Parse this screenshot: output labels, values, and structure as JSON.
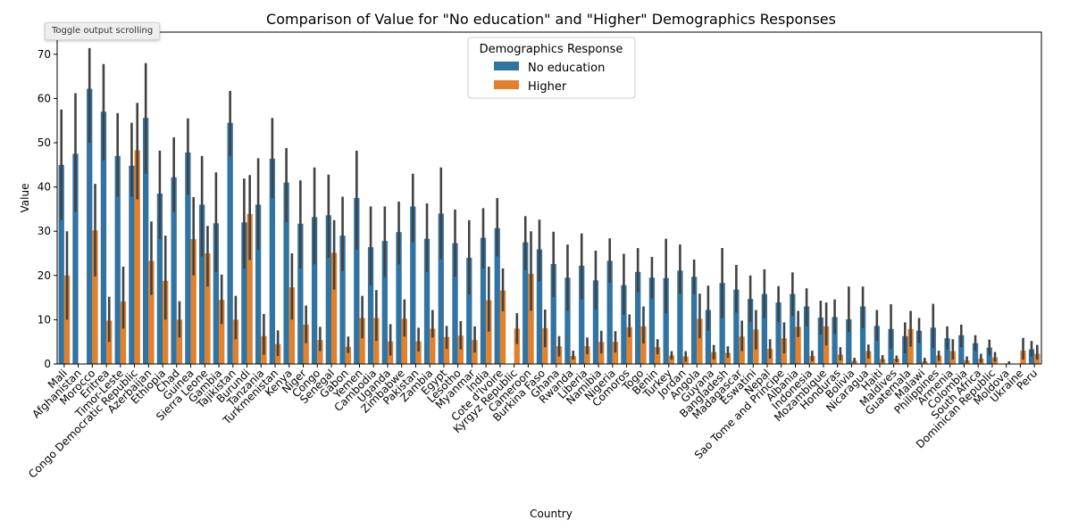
{
  "toolbar": {
    "toggle_label": "Toggle output scrolling"
  },
  "chart_data": {
    "type": "bar",
    "title": "Comparison of Value for \"No education\" and \"Higher\" Demographics Responses",
    "xlabel": "Country",
    "ylabel": "Value",
    "ylim": [
      0,
      75
    ],
    "yticks": [
      0,
      10,
      20,
      30,
      40,
      50,
      60,
      70
    ],
    "grid": false,
    "legend": {
      "title": "Demographics Response",
      "placement": "top-center"
    },
    "colors": {
      "No education": "#3274a1",
      "Higher": "#e1812c",
      "errorbar": "#424242"
    },
    "categories": [
      "Mali",
      "Afghanistan",
      "Morocco",
      "Eritrea",
      "Timor-Leste",
      "Congo Democratic Republic",
      "Azerbaijan",
      "Ethiopia",
      "Chad",
      "Guinea",
      "Sierra Leone",
      "Gambia",
      "Tajikistan",
      "Burundi",
      "Tanzania",
      "Turkmenistan",
      "Kenya",
      "Niger",
      "Congo",
      "Senegal",
      "Gabon",
      "Yemen",
      "Cambodia",
      "Uganda",
      "Zimbabwe",
      "Pakistan",
      "Zambia",
      "Egypt",
      "Lesotho",
      "Myanmar",
      "India",
      "Cote d'Ivoire",
      "Kyrgyz Republic",
      "Cameroon",
      "Burkina Faso",
      "Ghana",
      "Rwanda",
      "Liberia",
      "Namibia",
      "Nigeria",
      "Comoros",
      "Togo",
      "Benin",
      "Turkey",
      "Jordan",
      "Angola",
      "Guyana",
      "Bangladesh",
      "Madagascar",
      "Eswatini",
      "Nepal",
      "Sao Tome and Principe",
      "Albania",
      "Indonesia",
      "Mozambique",
      "Honduras",
      "Bolivia",
      "Nicaragua",
      "Haiti",
      "Maldives",
      "Guatemala",
      "Malawi",
      "Philippines",
      "Armenia",
      "Colombia",
      "South Africa",
      "Dominican Republic",
      "Moldova",
      "Ukraine",
      "Peru"
    ],
    "series": [
      {
        "name": "No education",
        "values": [
          45,
          47.5,
          62.2,
          57,
          47,
          44.8,
          55.6,
          38.5,
          42.2,
          47.8,
          36,
          31.8,
          54.5,
          32,
          36,
          46.4,
          41,
          31.7,
          33.2,
          33.6,
          29,
          37.5,
          26.4,
          27.8,
          29.8,
          35.6,
          28.3,
          34,
          27.3,
          24,
          28.5,
          30.7,
          0,
          27.5,
          25.9,
          22.6,
          19.5,
          22.2,
          18.9,
          23.3,
          17.8,
          20.8,
          19.5,
          19.4,
          21.1,
          19.7,
          12.2,
          18.3,
          16.8,
          14.7,
          15.8,
          13.9,
          15.8,
          13,
          10.5,
          10.6,
          10.1,
          13,
          8.6,
          7.9,
          6.3,
          7.5,
          8.2,
          5.8,
          6.5,
          4.7,
          3.7,
          0,
          0,
          3.3
        ],
        "err_low": [
          32.5,
          34.4,
          50,
          46,
          37.8,
          37.8,
          43,
          28.2,
          34.4,
          38.2,
          24.3,
          20.8,
          47,
          21.5,
          25.8,
          37.5,
          32,
          21.5,
          22.5,
          24,
          21,
          25.8,
          17.8,
          19.6,
          22.5,
          27.5,
          20.8,
          23.7,
          19.7,
          15.7,
          21.6,
          24.3,
          0,
          21.2,
          18.7,
          15.2,
          12,
          14.6,
          12.3,
          18.3,
          11.1,
          16.2,
          14.8,
          11.5,
          15.8,
          15.8,
          7.5,
          10.4,
          11.6,
          9.5,
          10.4,
          9.4,
          10.8,
          8.5,
          6.6,
          6.8,
          7.2,
          8.1,
          5.2,
          3.4,
          2.4,
          4.7,
          3.6,
          3.3,
          3.8,
          2.9,
          1.9,
          0,
          0,
          1.7
        ],
        "err_high": [
          57.5,
          61.2,
          71.4,
          67.8,
          56.7,
          54.5,
          68,
          48.2,
          51.2,
          55.5,
          47,
          43.3,
          61.7,
          41.9,
          46.5,
          55.6,
          48.8,
          41.5,
          44.4,
          42.8,
          37.8,
          48.2,
          35.6,
          35.6,
          36.7,
          43,
          36.3,
          44.4,
          34.9,
          32.5,
          35.2,
          37.5,
          0,
          33.4,
          32.6,
          29.9,
          27,
          29.5,
          25.6,
          28.4,
          24.9,
          26.2,
          24.2,
          28.3,
          27,
          23.6,
          17.7,
          26.2,
          22.4,
          20,
          21.4,
          17.6,
          20.7,
          17.1,
          14.3,
          14.6,
          17.5,
          17.5,
          12.2,
          13.5,
          9.4,
          10.4,
          13.6,
          8.5,
          8.9,
          6.5,
          5.5,
          0,
          0,
          5.2
        ]
      },
      {
        "name": "Higher",
        "values": [
          20,
          0,
          30.2,
          9.8,
          14.1,
          48.3,
          23.3,
          18.8,
          10,
          28.2,
          25,
          14.5,
          10,
          33.9,
          6.3,
          4.5,
          17.3,
          8.9,
          5.4,
          25.1,
          3.9,
          10.4,
          10.4,
          5.1,
          10.2,
          5.1,
          8,
          6.1,
          6.4,
          5.4,
          14.4,
          16.6,
          8,
          20.4,
          8.1,
          4,
          1.8,
          4,
          5,
          5,
          8.3,
          8.5,
          3.8,
          1.9,
          1.7,
          10.2,
          2.7,
          2.5,
          6.2,
          7.8,
          3.4,
          5.8,
          8.4,
          1.8,
          8.5,
          2.1,
          0.7,
          2.9,
          1.1,
          1.2,
          7.9,
          0.6,
          1.9,
          2.9,
          0.8,
          1.2,
          1.5,
          0.1,
          3,
          2.3
        ],
        "err_low": [
          10,
          0,
          19.8,
          5,
          8,
          37.2,
          15.6,
          10,
          6,
          20,
          17.5,
          9,
          5.6,
          23.5,
          2.1,
          1.8,
          10,
          4.7,
          2.9,
          16.8,
          2.5,
          5.8,
          5.2,
          1.9,
          6.2,
          2.8,
          6,
          3.4,
          3.3,
          2.6,
          7.3,
          11.9,
          4.5,
          12,
          3.8,
          1.7,
          1,
          2.2,
          2.4,
          2.6,
          6.1,
          4.6,
          2.2,
          1,
          0.5,
          5.8,
          1,
          1.4,
          2.9,
          3.3,
          1.2,
          2.4,
          6.1,
          0.6,
          4.2,
          0.8,
          0.2,
          1.2,
          0.3,
          0.4,
          3.9,
          0.2,
          0.7,
          1,
          0.2,
          0.3,
          0.5,
          0,
          1,
          1
        ],
        "err_high": [
          30,
          0,
          40.7,
          15.2,
          22,
          59,
          32.2,
          29,
          14.2,
          37.7,
          31.2,
          20.2,
          15.4,
          42.7,
          11.3,
          7.6,
          25,
          13.2,
          8.4,
          32.5,
          6.2,
          15.4,
          16.7,
          9,
          14.6,
          8.2,
          12.2,
          8.6,
          9.7,
          8.5,
          22,
          21.6,
          11.5,
          30,
          12.3,
          6.3,
          3,
          6,
          7.5,
          7.4,
          11.2,
          13,
          5.6,
          2.9,
          2.9,
          15.9,
          4.3,
          4,
          9.8,
          12.2,
          5.6,
          9.4,
          12,
          3,
          13.9,
          3.8,
          1.4,
          4.4,
          2,
          1.9,
          12,
          1.4,
          3,
          5.6,
          1.7,
          2.3,
          2.7,
          0.6,
          5.9,
          4.3
        ]
      }
    ]
  }
}
